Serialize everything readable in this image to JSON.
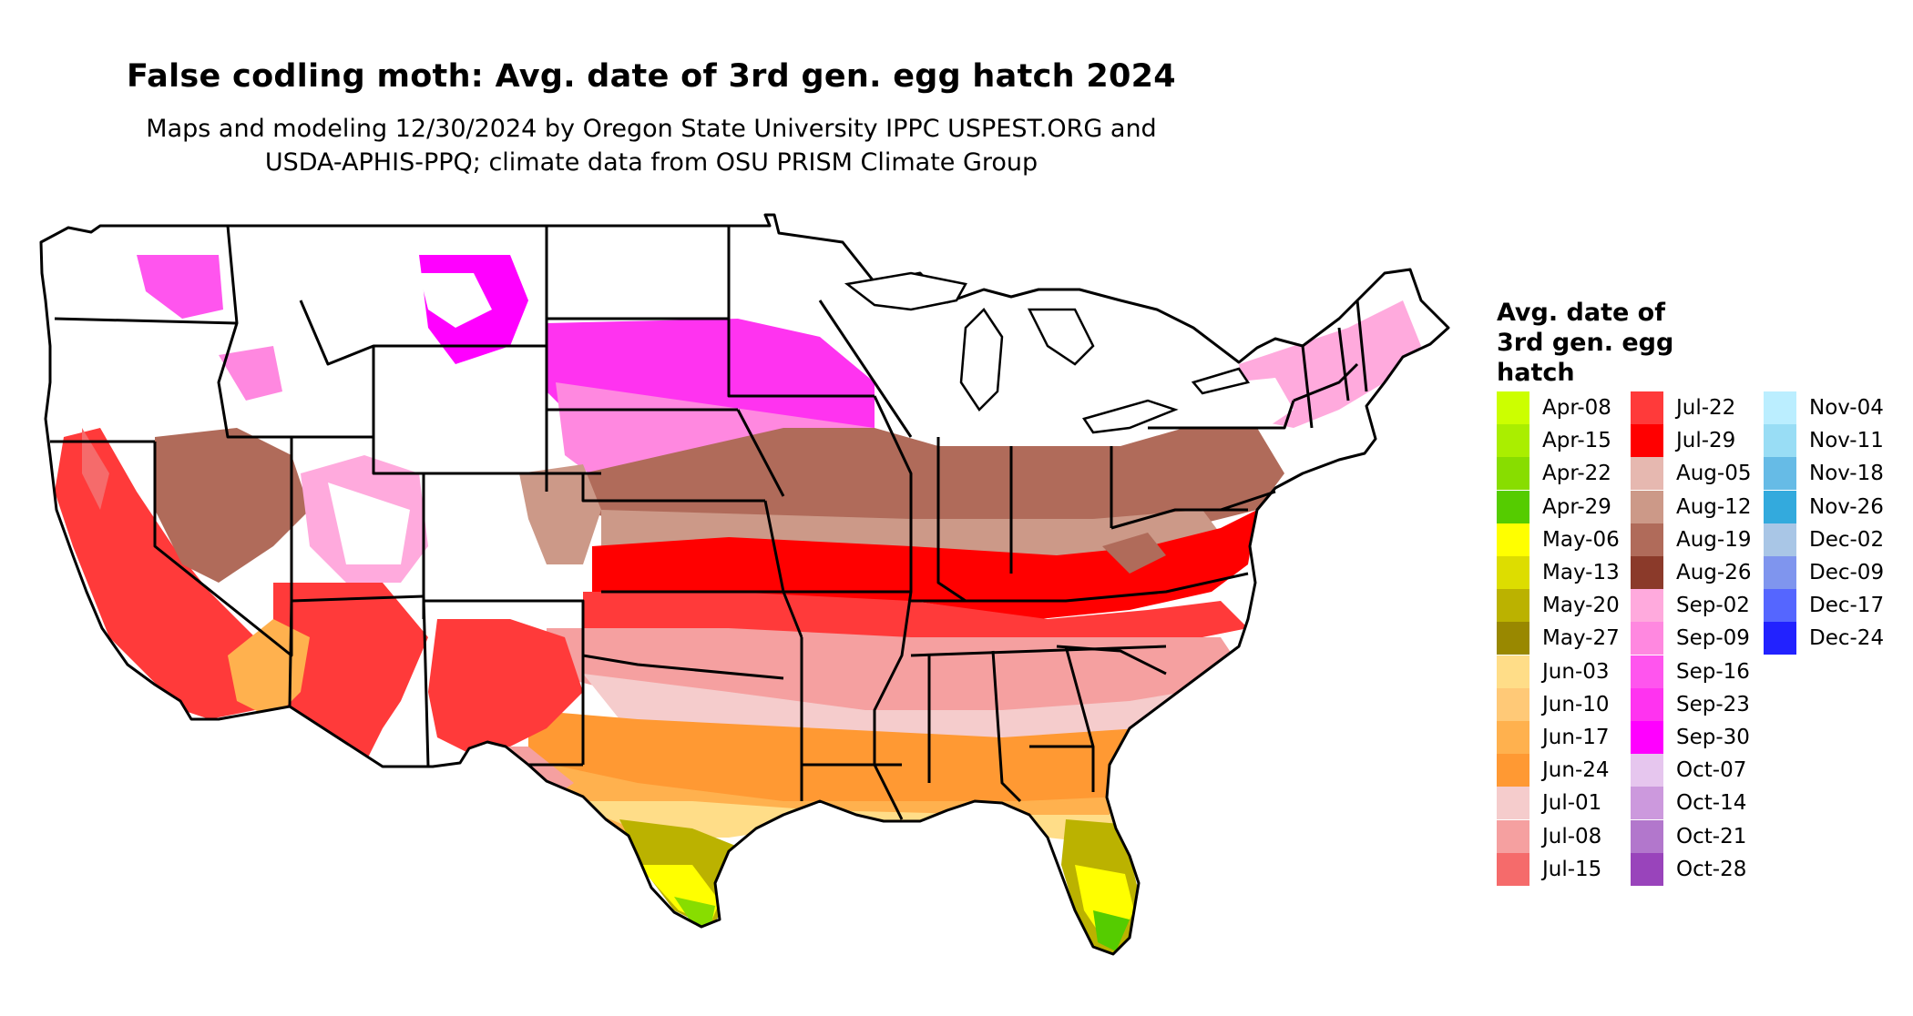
{
  "title": "False codling moth: Avg. date of 3rd gen. egg hatch 2024",
  "subtitle_line1": "Maps and modeling 12/30/2024 by Oregon State University IPPC USPEST.ORG and",
  "subtitle_line2": "USDA-APHIS-PPQ; climate data from OSU PRISM Climate Group",
  "legend": {
    "title_lines": [
      "Avg. date of",
      "3rd gen. egg",
      "hatch"
    ],
    "items": [
      {
        "label": "Apr-08",
        "color": "#ccff00"
      },
      {
        "label": "Apr-15",
        "color": "#aaee00"
      },
      {
        "label": "Apr-22",
        "color": "#88dd00"
      },
      {
        "label": "Apr-29",
        "color": "#55cc00"
      },
      {
        "label": "May-06",
        "color": "#ffff00"
      },
      {
        "label": "May-13",
        "color": "#dddd00"
      },
      {
        "label": "May-20",
        "color": "#bbb200"
      },
      {
        "label": "May-27",
        "color": "#998800"
      },
      {
        "label": "Jun-03",
        "color": "#ffdd88"
      },
      {
        "label": "Jun-10",
        "color": "#ffc977"
      },
      {
        "label": "Jun-17",
        "color": "#ffb14e"
      },
      {
        "label": "Jun-24",
        "color": "#ff9933"
      },
      {
        "label": "Jul-01",
        "color": "#f5cccc"
      },
      {
        "label": "Jul-08",
        "color": "#f5a0a0"
      },
      {
        "label": "Jul-15",
        "color": "#f56b6b"
      },
      {
        "label": "Jul-22",
        "color": "#ff3a3a"
      },
      {
        "label": "Jul-29",
        "color": "#ff0000"
      },
      {
        "label": "Aug-05",
        "color": "#e6b8b0"
      },
      {
        "label": "Aug-12",
        "color": "#cc9988"
      },
      {
        "label": "Aug-19",
        "color": "#b06b5a"
      },
      {
        "label": "Aug-26",
        "color": "#8b3a2a"
      },
      {
        "label": "Sep-02",
        "color": "#ffaadd"
      },
      {
        "label": "Sep-09",
        "color": "#ff88e0"
      },
      {
        "label": "Sep-16",
        "color": "#ff55ee"
      },
      {
        "label": "Sep-23",
        "color": "#ff33f0"
      },
      {
        "label": "Sep-30",
        "color": "#ff00ff"
      },
      {
        "label": "Oct-07",
        "color": "#e6c6ee"
      },
      {
        "label": "Oct-14",
        "color": "#cc99dd"
      },
      {
        "label": "Oct-21",
        "color": "#b277cc"
      },
      {
        "label": "Oct-28",
        "color": "#9944bb"
      },
      {
        "label": "Nov-04",
        "color": "#bbeeff"
      },
      {
        "label": "Nov-11",
        "color": "#99ddf5"
      },
      {
        "label": "Nov-18",
        "color": "#66bbe6"
      },
      {
        "label": "Nov-26",
        "color": "#33aadd"
      },
      {
        "label": "Dec-02",
        "color": "#a9c6e6"
      },
      {
        "label": "Dec-09",
        "color": "#7f95ee"
      },
      {
        "label": "Dec-17",
        "color": "#5566ff"
      },
      {
        "label": "Dec-24",
        "color": "#2222ff"
      }
    ]
  }
}
